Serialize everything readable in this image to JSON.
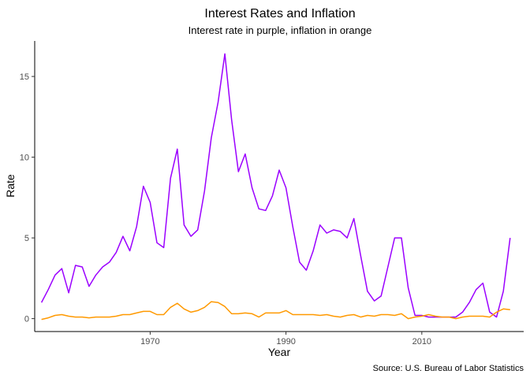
{
  "chart_data": {
    "type": "line",
    "title": "Interest Rates and Inflation",
    "subtitle": "Interest rate in purple, inflation in orange",
    "xlabel": "Year",
    "ylabel": "Rate",
    "caption": "Source: U.S. Bureau of Labor Statistics",
    "xlim": [
      1953,
      2025
    ],
    "ylim": [
      -0.8,
      17.2
    ],
    "x_ticks": [
      1970,
      1990,
      2010
    ],
    "y_ticks": [
      0,
      5,
      10,
      15
    ],
    "grid": false,
    "legend": "none",
    "series": [
      {
        "color": "#9b00ff",
        "points": [
          [
            1954,
            1.0
          ],
          [
            1955,
            1.8
          ],
          [
            1956,
            2.7
          ],
          [
            1957,
            3.1
          ],
          [
            1958,
            1.6
          ],
          [
            1959,
            3.3
          ],
          [
            1960,
            3.2
          ],
          [
            1961,
            2.0
          ],
          [
            1962,
            2.7
          ],
          [
            1963,
            3.2
          ],
          [
            1964,
            3.5
          ],
          [
            1965,
            4.1
          ],
          [
            1966,
            5.1
          ],
          [
            1967,
            4.2
          ],
          [
            1968,
            5.7
          ],
          [
            1969,
            8.2
          ],
          [
            1970,
            7.2
          ],
          [
            1971,
            4.7
          ],
          [
            1972,
            4.4
          ],
          [
            1973,
            8.7
          ],
          [
            1974,
            10.5
          ],
          [
            1975,
            5.8
          ],
          [
            1976,
            5.1
          ],
          [
            1977,
            5.5
          ],
          [
            1978,
            7.9
          ],
          [
            1979,
            11.2
          ],
          [
            1980,
            13.4
          ],
          [
            1981,
            16.4
          ],
          [
            1982,
            12.3
          ],
          [
            1983,
            9.1
          ],
          [
            1984,
            10.2
          ],
          [
            1985,
            8.1
          ],
          [
            1986,
            6.8
          ],
          [
            1987,
            6.7
          ],
          [
            1988,
            7.6
          ],
          [
            1989,
            9.2
          ],
          [
            1990,
            8.1
          ],
          [
            1991,
            5.7
          ],
          [
            1992,
            3.5
          ],
          [
            1993,
            3.0
          ],
          [
            1994,
            4.2
          ],
          [
            1995,
            5.8
          ],
          [
            1996,
            5.3
          ],
          [
            1997,
            5.5
          ],
          [
            1998,
            5.4
          ],
          [
            1999,
            5.0
          ],
          [
            2000,
            6.2
          ],
          [
            2001,
            3.9
          ],
          [
            2002,
            1.7
          ],
          [
            2003,
            1.1
          ],
          [
            2004,
            1.4
          ],
          [
            2005,
            3.2
          ],
          [
            2006,
            5.0
          ],
          [
            2007,
            5.0
          ],
          [
            2008,
            1.9
          ],
          [
            2009,
            0.2
          ],
          [
            2010,
            0.2
          ],
          [
            2011,
            0.1
          ],
          [
            2012,
            0.1
          ],
          [
            2013,
            0.1
          ],
          [
            2014,
            0.1
          ],
          [
            2015,
            0.1
          ],
          [
            2016,
            0.4
          ],
          [
            2017,
            1.0
          ],
          [
            2018,
            1.8
          ],
          [
            2019,
            2.2
          ],
          [
            2020,
            0.4
          ],
          [
            2021,
            0.1
          ],
          [
            2022,
            1.7
          ],
          [
            2023,
            5.0
          ]
        ]
      },
      {
        "color": "#ff9900",
        "points": [
          [
            1954,
            -0.05
          ],
          [
            1955,
            0.05
          ],
          [
            1956,
            0.2
          ],
          [
            1957,
            0.25
          ],
          [
            1958,
            0.15
          ],
          [
            1959,
            0.1
          ],
          [
            1960,
            0.1
          ],
          [
            1961,
            0.05
          ],
          [
            1962,
            0.1
          ],
          [
            1963,
            0.1
          ],
          [
            1964,
            0.1
          ],
          [
            1965,
            0.15
          ],
          [
            1966,
            0.25
          ],
          [
            1967,
            0.25
          ],
          [
            1968,
            0.35
          ],
          [
            1969,
            0.45
          ],
          [
            1970,
            0.45
          ],
          [
            1971,
            0.25
          ],
          [
            1972,
            0.25
          ],
          [
            1973,
            0.7
          ],
          [
            1974,
            0.95
          ],
          [
            1975,
            0.6
          ],
          [
            1976,
            0.4
          ],
          [
            1977,
            0.5
          ],
          [
            1978,
            0.7
          ],
          [
            1979,
            1.05
          ],
          [
            1980,
            1.0
          ],
          [
            1981,
            0.75
          ],
          [
            1982,
            0.3
          ],
          [
            1983,
            0.3
          ],
          [
            1984,
            0.35
          ],
          [
            1985,
            0.3
          ],
          [
            1986,
            0.1
          ],
          [
            1987,
            0.35
          ],
          [
            1988,
            0.35
          ],
          [
            1989,
            0.35
          ],
          [
            1990,
            0.5
          ],
          [
            1991,
            0.25
          ],
          [
            1992,
            0.25
          ],
          [
            1993,
            0.25
          ],
          [
            1994,
            0.25
          ],
          [
            1995,
            0.2
          ],
          [
            1996,
            0.25
          ],
          [
            1997,
            0.15
          ],
          [
            1998,
            0.1
          ],
          [
            1999,
            0.2
          ],
          [
            2000,
            0.25
          ],
          [
            2001,
            0.1
          ],
          [
            2002,
            0.2
          ],
          [
            2003,
            0.15
          ],
          [
            2004,
            0.25
          ],
          [
            2005,
            0.25
          ],
          [
            2006,
            0.2
          ],
          [
            2007,
            0.3
          ],
          [
            2008,
            0.0
          ],
          [
            2009,
            0.1
          ],
          [
            2010,
            0.15
          ],
          [
            2011,
            0.25
          ],
          [
            2012,
            0.15
          ],
          [
            2013,
            0.1
          ],
          [
            2014,
            0.1
          ],
          [
            2015,
            0.0
          ],
          [
            2016,
            0.1
          ],
          [
            2017,
            0.15
          ],
          [
            2018,
            0.15
          ],
          [
            2019,
            0.15
          ],
          [
            2020,
            0.1
          ],
          [
            2021,
            0.4
          ],
          [
            2022,
            0.6
          ],
          [
            2023,
            0.55
          ]
        ]
      }
    ]
  }
}
